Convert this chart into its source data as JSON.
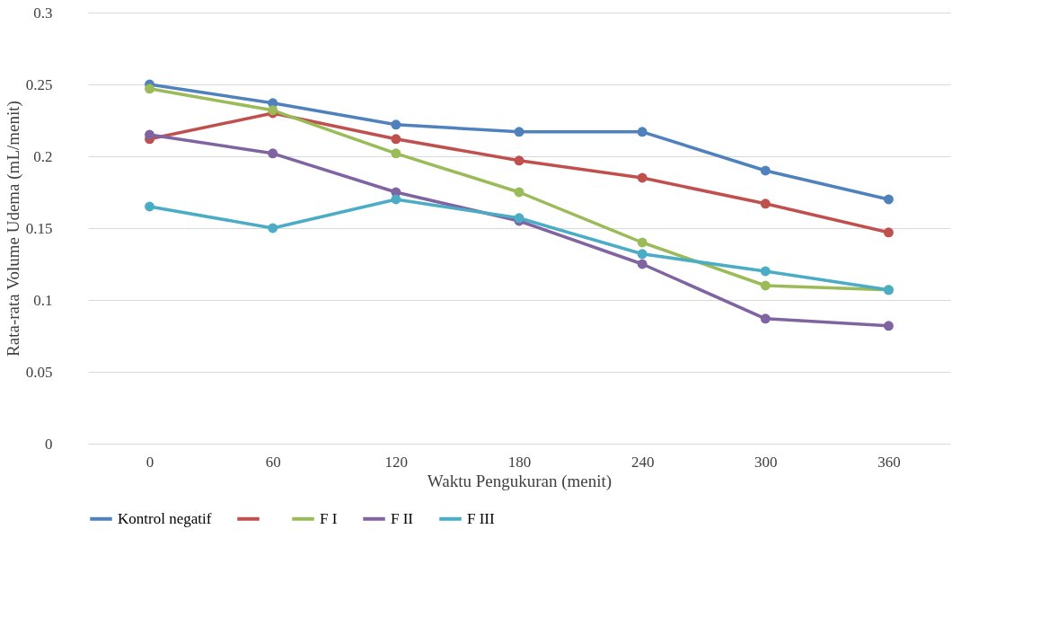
{
  "chart_data": {
    "type": "line",
    "xlabel": "Waktu Pengukuran (menit)",
    "ylabel": "Rata-rata Volume Udema (mL/menit)",
    "categories": [
      "0",
      "60",
      "120",
      "180",
      "240",
      "300",
      "360"
    ],
    "ylim": [
      0,
      0.3
    ],
    "yticks": [
      0,
      0.05,
      0.1,
      0.15,
      0.2,
      0.25,
      0.3
    ],
    "grid": "y",
    "legend": "bottom",
    "marker": "circle",
    "line_style": "solid",
    "series": [
      {
        "name": "Kontrol negatif",
        "color": "#4f81bd",
        "values": [
          0.25,
          0.237,
          0.222,
          0.217,
          0.217,
          0.19,
          0.17
        ]
      },
      {
        "color": "#c0504d",
        "values": [
          0.212,
          0.23,
          0.212,
          0.197,
          0.185,
          0.167,
          0.147
        ]
      },
      {
        "name": "F I",
        "color": "#9bbb59",
        "values": [
          0.247,
          0.232,
          0.202,
          0.175,
          0.14,
          0.11,
          0.107
        ]
      },
      {
        "name": "F II",
        "color": "#8064a2",
        "values": [
          0.215,
          0.202,
          0.175,
          0.155,
          0.125,
          0.087,
          0.082
        ]
      },
      {
        "name": "F III",
        "color": "#4bacc6",
        "values": [
          0.165,
          0.15,
          0.17,
          0.157,
          0.132,
          0.12,
          0.107
        ]
      }
    ]
  }
}
